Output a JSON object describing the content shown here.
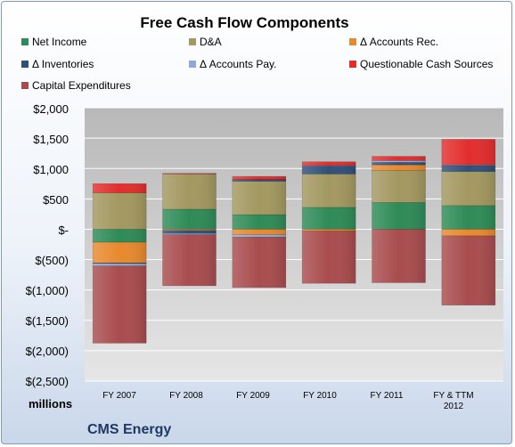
{
  "chart_data": {
    "type": "bar",
    "stacked": true,
    "title": "Free Cash Flow Components",
    "units_label": "millions",
    "company": "CMS Energy",
    "categories": [
      "FY 2007",
      "FY 2008",
      "FY 2009",
      "FY 2010",
      "FY 2011",
      "FY & TTM\n2012"
    ],
    "ylim": [
      -2500,
      2000
    ],
    "yticks": [
      2000,
      1500,
      1000,
      500,
      0,
      -500,
      -1000,
      -1500,
      -2000,
      -2500
    ],
    "ytick_labels": [
      "$2,000",
      "$1,500",
      "$1,000",
      "$500",
      "$-",
      "$(500)",
      "$(1,000)",
      "$(1,500)",
      "$(2,000)",
      "$(2,500)"
    ],
    "grid": true,
    "legend_position": "top",
    "series": [
      {
        "name": "Net Income",
        "color": "#2e8b57",
        "values": [
          -215,
          330,
          240,
          360,
          440,
          390
        ]
      },
      {
        "name": "D&A",
        "color": "#a39860",
        "values": [
          600,
          580,
          550,
          550,
          530,
          560
        ]
      },
      {
        "name": "Δ Accounts Rec.",
        "color": "#e8892e",
        "values": [
          -340,
          -20,
          -90,
          -30,
          90,
          -110
        ]
      },
      {
        "name": "Δ Inventories",
        "color": "#2f4f7a",
        "values": [
          -10,
          -50,
          30,
          130,
          40,
          100
        ]
      },
      {
        "name": "Δ Accounts Pay.",
        "color": "#8ea9d5",
        "values": [
          -40,
          -20,
          -40,
          10,
          30,
          10
        ]
      },
      {
        "name": "Questionable Cash Sources",
        "color": "#e32d2d",
        "values": [
          150,
          10,
          50,
          60,
          70,
          420
        ]
      },
      {
        "name": "Capital Expenditures",
        "color": "#a94c4e",
        "values": [
          -1270,
          -840,
          -830,
          -860,
          -880,
          -1140
        ]
      }
    ]
  }
}
